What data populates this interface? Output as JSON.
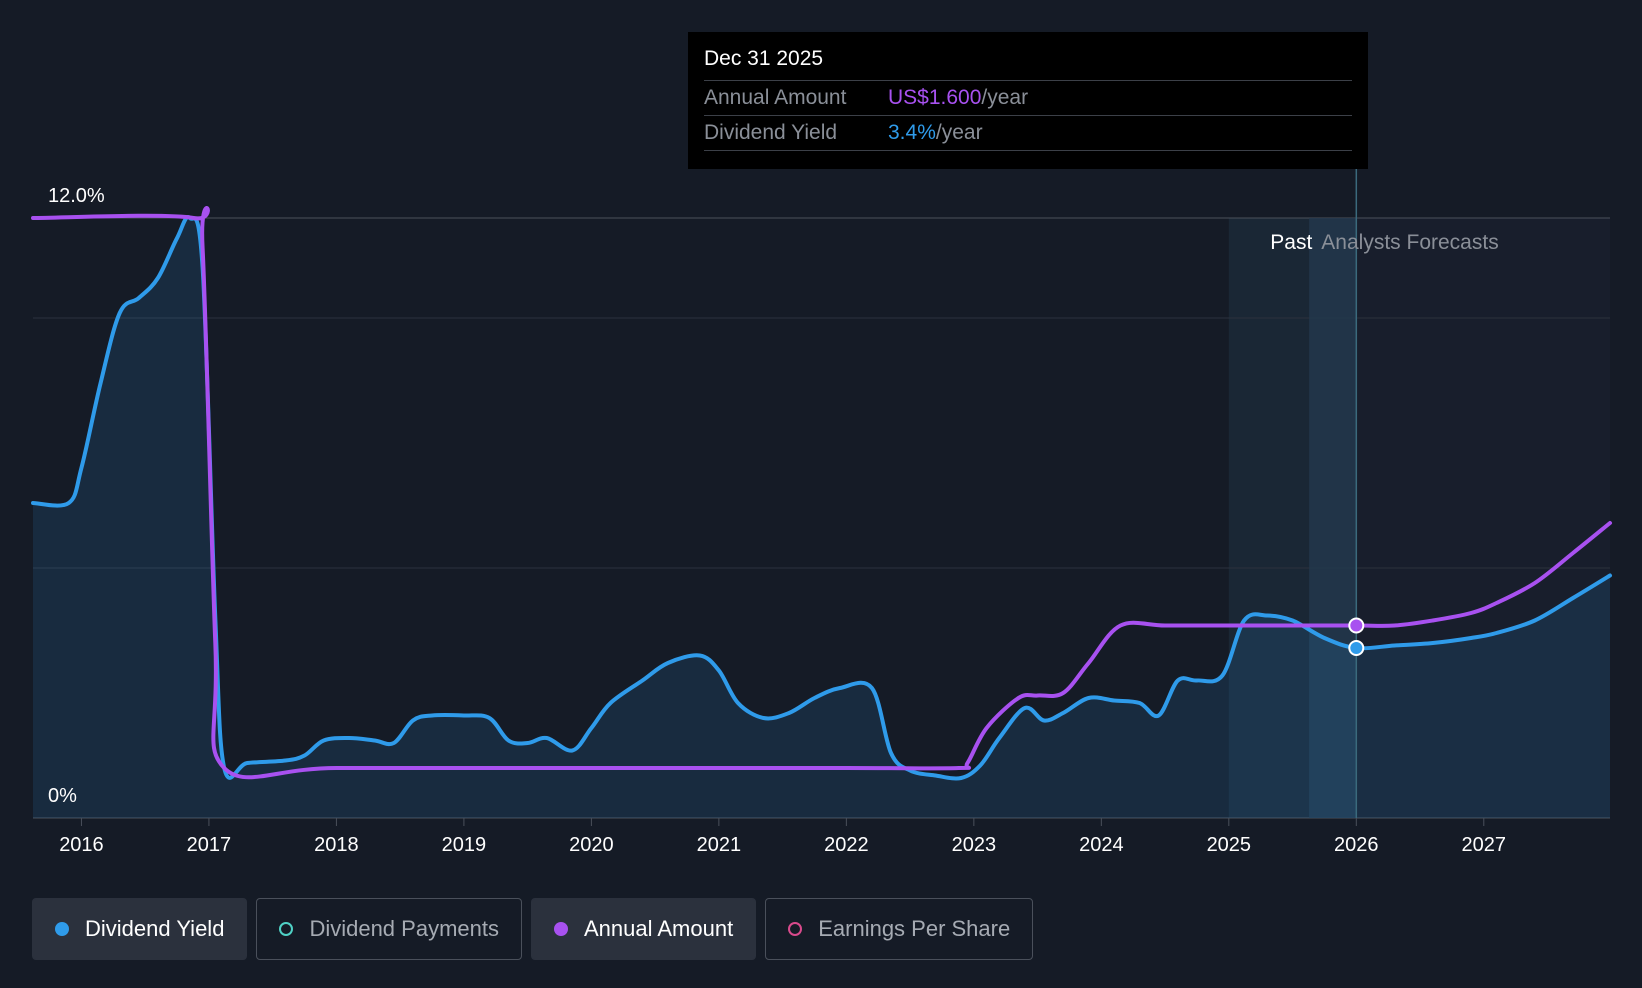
{
  "tooltip": {
    "date": "Dec 31 2025",
    "rows": [
      {
        "label": "Annual Amount",
        "value": "US$1.600",
        "unit": "/year"
      },
      {
        "label": "Dividend Yield",
        "value": "3.4%",
        "unit": "/year"
      }
    ]
  },
  "legend": [
    {
      "label": "Dividend Yield",
      "color": "#2f9bea",
      "active": true,
      "filled": true
    },
    {
      "label": "Dividend Payments",
      "color": "#4fd1c5",
      "active": false,
      "filled": false
    },
    {
      "label": "Annual Amount",
      "color": "#a851f0",
      "active": true,
      "filled": true
    },
    {
      "label": "Earnings Per Share",
      "color": "#d94a8c",
      "active": false,
      "filled": false
    }
  ],
  "chart_data": {
    "type": "line",
    "x_axis": {
      "ticks": [
        "2016",
        "2017",
        "2018",
        "2019",
        "2020",
        "2021",
        "2022",
        "2023",
        "2024",
        "2025",
        "2026",
        "2027"
      ],
      "range": [
        2015.62,
        2027.99
      ]
    },
    "y_axis": {
      "labels": [
        {
          "value": 12,
          "text": "12.0%"
        },
        {
          "value": 0,
          "text": "0%"
        }
      ],
      "range": [
        0,
        12
      ],
      "gridlines": [
        12,
        10,
        5
      ]
    },
    "regions": [
      {
        "label": "Past",
        "start": 2025.0,
        "end": 2026.0
      },
      {
        "label": "Analysts Forecasts",
        "start": 2026.0,
        "end": 2027.99
      }
    ],
    "colors": {
      "yield": "#2f9bea",
      "annual": "#a851f0"
    },
    "series": [
      {
        "name": "Dividend Yield",
        "points": [
          [
            2015.62,
            6.3
          ],
          [
            2015.9,
            6.3
          ],
          [
            2016.0,
            7.0
          ],
          [
            2016.15,
            8.7
          ],
          [
            2016.3,
            10.1
          ],
          [
            2016.45,
            10.4
          ],
          [
            2016.6,
            10.8
          ],
          [
            2016.75,
            11.6
          ],
          [
            2016.85,
            12.0
          ],
          [
            2016.95,
            11.0
          ],
          [
            2017.05,
            4.0
          ],
          [
            2017.12,
            1.0
          ],
          [
            2017.3,
            1.1
          ],
          [
            2017.6,
            1.15
          ],
          [
            2017.75,
            1.25
          ],
          [
            2017.9,
            1.55
          ],
          [
            2018.1,
            1.6
          ],
          [
            2018.3,
            1.55
          ],
          [
            2018.45,
            1.5
          ],
          [
            2018.6,
            1.95
          ],
          [
            2018.75,
            2.05
          ],
          [
            2019.0,
            2.05
          ],
          [
            2019.2,
            2.0
          ],
          [
            2019.35,
            1.55
          ],
          [
            2019.5,
            1.5
          ],
          [
            2019.65,
            1.6
          ],
          [
            2019.85,
            1.35
          ],
          [
            2020.0,
            1.8
          ],
          [
            2020.15,
            2.3
          ],
          [
            2020.4,
            2.75
          ],
          [
            2020.6,
            3.1
          ],
          [
            2020.85,
            3.25
          ],
          [
            2021.0,
            2.95
          ],
          [
            2021.15,
            2.3
          ],
          [
            2021.35,
            2.0
          ],
          [
            2021.55,
            2.1
          ],
          [
            2021.75,
            2.4
          ],
          [
            2021.95,
            2.6
          ],
          [
            2022.2,
            2.6
          ],
          [
            2022.35,
            1.3
          ],
          [
            2022.5,
            0.95
          ],
          [
            2022.7,
            0.85
          ],
          [
            2022.9,
            0.8
          ],
          [
            2023.05,
            1.05
          ],
          [
            2023.2,
            1.6
          ],
          [
            2023.4,
            2.2
          ],
          [
            2023.55,
            1.95
          ],
          [
            2023.7,
            2.1
          ],
          [
            2023.9,
            2.4
          ],
          [
            2024.1,
            2.35
          ],
          [
            2024.3,
            2.3
          ],
          [
            2024.45,
            2.05
          ],
          [
            2024.6,
            2.75
          ],
          [
            2024.75,
            2.75
          ],
          [
            2024.95,
            2.85
          ],
          [
            2025.12,
            3.95
          ],
          [
            2025.3,
            4.05
          ],
          [
            2025.5,
            3.95
          ],
          [
            2025.75,
            3.6
          ],
          [
            2026.0,
            3.4
          ],
          [
            2026.3,
            3.45
          ],
          [
            2026.6,
            3.5
          ],
          [
            2026.9,
            3.6
          ],
          [
            2027.1,
            3.7
          ],
          [
            2027.4,
            3.95
          ],
          [
            2027.7,
            4.4
          ],
          [
            2027.99,
            4.85
          ]
        ]
      },
      {
        "name": "Annual Amount",
        "points": [
          [
            2015.62,
            12.0
          ],
          [
            2016.88,
            12.0
          ],
          [
            2016.95,
            11.4
          ],
          [
            2017.05,
            3.5
          ],
          [
            2017.12,
            1.0
          ],
          [
            2018.0,
            1.0
          ],
          [
            2020.0,
            1.0
          ],
          [
            2022.0,
            1.0
          ],
          [
            2022.88,
            1.0
          ],
          [
            2022.95,
            1.1
          ],
          [
            2023.1,
            1.8
          ],
          [
            2023.35,
            2.4
          ],
          [
            2023.5,
            2.45
          ],
          [
            2023.7,
            2.5
          ],
          [
            2023.9,
            3.1
          ],
          [
            2024.15,
            3.85
          ],
          [
            2024.5,
            3.85
          ],
          [
            2025.0,
            3.85
          ],
          [
            2025.5,
            3.85
          ],
          [
            2026.0,
            3.85
          ],
          [
            2026.3,
            3.85
          ],
          [
            2026.6,
            3.95
          ],
          [
            2026.9,
            4.1
          ],
          [
            2027.1,
            4.3
          ],
          [
            2027.4,
            4.7
          ],
          [
            2027.7,
            5.3
          ],
          [
            2027.99,
            5.9
          ]
        ]
      }
    ],
    "markers": [
      {
        "series": "Annual Amount",
        "x": 2026.0,
        "y": 3.85
      },
      {
        "series": "Dividend Yield",
        "x": 2026.0,
        "y": 3.4
      }
    ]
  }
}
